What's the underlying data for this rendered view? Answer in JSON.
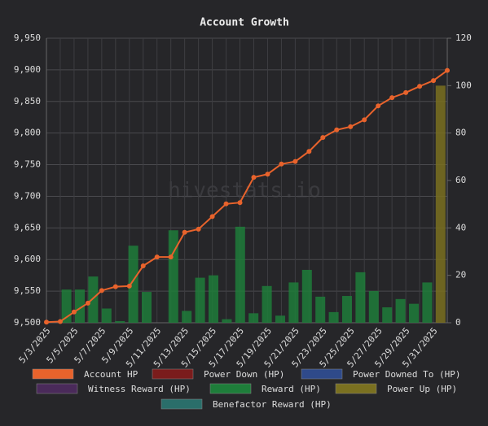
{
  "chart_data": {
    "type": "combo",
    "title": "Account Growth",
    "watermark": "hivestats.io",
    "categories": [
      "5/3/2025",
      null,
      "5/5/2025",
      null,
      "5/7/2025",
      null,
      "5/9/2025",
      null,
      "5/11/2025",
      null,
      "5/13/2025",
      null,
      "5/15/2025",
      null,
      "5/17/2025",
      null,
      "5/19/2025",
      null,
      "5/21/2025",
      null,
      "5/23/2025",
      null,
      "5/25/2025",
      null,
      "5/27/2025",
      null,
      "5/29/2025",
      null,
      "5/31/2025",
      null
    ],
    "ylim": [
      9500,
      9950
    ],
    "yticks": [
      {
        "value": 9500,
        "label": "9,500"
      },
      {
        "value": 9550,
        "label": "9,550"
      },
      {
        "value": 9600,
        "label": "9,600"
      },
      {
        "value": 9650,
        "label": "9,650"
      },
      {
        "value": 9700,
        "label": "9,700"
      },
      {
        "value": 9750,
        "label": "9,750"
      },
      {
        "value": 9800,
        "label": "9,800"
      },
      {
        "value": 9850,
        "label": "9,850"
      },
      {
        "value": 9900,
        "label": "9,900"
      },
      {
        "value": 9950,
        "label": "9,950"
      }
    ],
    "y2lim": [
      0,
      120
    ],
    "y2ticks": [
      0,
      20,
      40,
      60,
      80,
      100,
      120
    ],
    "grid": true,
    "series": [
      {
        "name": "Account HP",
        "color": "#e8632c",
        "kind": "line",
        "axis": "y",
        "values": [
          9501,
          9502,
          9517,
          9531,
          9551,
          9557,
          9558,
          9590,
          9604,
          9604,
          9643,
          9648,
          9668,
          9688,
          9690,
          9730,
          9735,
          9751,
          9755,
          9771,
          9793,
          9805,
          9810,
          9821,
          9843,
          9856,
          9864,
          9874,
          9883,
          9899
        ]
      },
      {
        "name": "Power Down (HP)",
        "color": "#7a1c1c",
        "kind": "bar",
        "axis": "y2",
        "values": [
          0,
          0,
          0,
          0,
          0,
          0,
          0,
          0,
          0,
          0,
          0,
          0,
          0,
          0,
          0,
          0,
          0,
          0,
          0,
          0,
          0,
          0,
          0,
          0,
          0,
          0,
          0,
          0,
          0,
          0
        ]
      },
      {
        "name": "Power Downed To (HP)",
        "color": "#2f4a8a",
        "kind": "bar",
        "axis": "y2",
        "values": [
          0,
          0,
          0,
          0,
          0,
          0,
          0,
          0,
          0,
          0,
          0,
          0,
          0,
          0,
          0,
          0,
          0,
          0,
          0,
          0,
          0,
          0,
          0,
          0,
          0,
          0,
          0,
          0,
          0,
          0
        ]
      },
      {
        "name": "Witness Reward (HP)",
        "color": "#4a2a5a",
        "kind": "bar",
        "axis": "y2",
        "values": [
          0,
          0,
          0,
          0,
          0,
          0,
          0,
          0,
          0,
          0,
          0,
          0,
          0,
          0,
          0,
          0,
          0,
          0,
          0,
          0,
          0,
          0,
          0,
          0,
          0,
          0,
          0,
          0,
          0,
          0
        ]
      },
      {
        "name": "Reward (HP)",
        "color": "#1e7d3a",
        "kind": "bar",
        "axis": "y2",
        "values": [
          0,
          14,
          14,
          19.5,
          6,
          0.7,
          32.5,
          13,
          0,
          39,
          5,
          19,
          20,
          1.5,
          40.5,
          4,
          15.5,
          3,
          17,
          22.3,
          11,
          4.5,
          11.3,
          21.3,
          13.4,
          6.5,
          10,
          8,
          17,
          0
        ]
      },
      {
        "name": "Power Up (HP)",
        "color": "#7a7020",
        "kind": "bar",
        "axis": "y2",
        "values": [
          0,
          0,
          0,
          0,
          0,
          0,
          0,
          0,
          0,
          0,
          0,
          0,
          0,
          0,
          0,
          0,
          0,
          0,
          0,
          0,
          0,
          0,
          0,
          0,
          0,
          0,
          0,
          0,
          0,
          100
        ]
      },
      {
        "name": "Benefactor Reward (HP)",
        "color": "#2a6e6a",
        "kind": "bar",
        "axis": "y2",
        "values": [
          0,
          0,
          0,
          0,
          0,
          0,
          0,
          0,
          0,
          0,
          0,
          0,
          0,
          0,
          0,
          0,
          0,
          0,
          0,
          0,
          0,
          0,
          0,
          0,
          0,
          0,
          0,
          0,
          0,
          0
        ]
      }
    ]
  }
}
